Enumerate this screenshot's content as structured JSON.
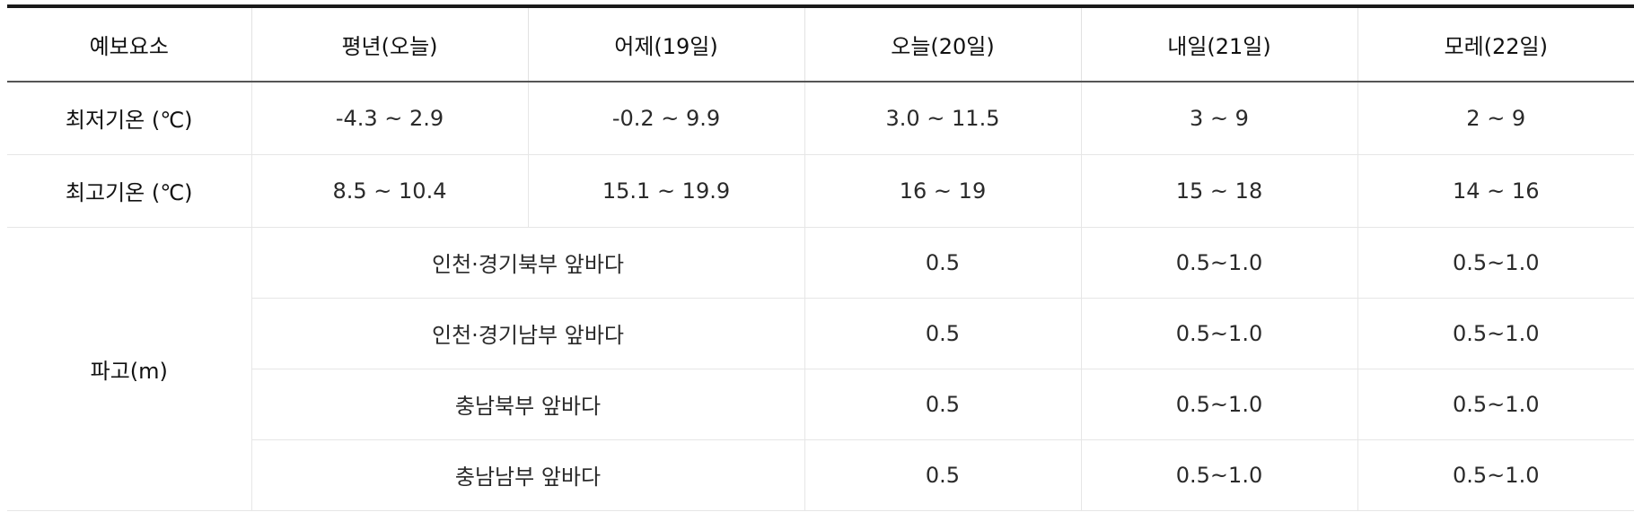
{
  "header": {
    "element": "예보요소",
    "normal": "평년(오늘)",
    "yesterday": "어제(19일)",
    "today": "오늘(20일)",
    "tomorrow": "내일(21일)",
    "dayafter": "모레(22일)"
  },
  "min_temp": {
    "label": "최저기온 (℃)",
    "normal": "-4.3 ~ 2.9",
    "yesterday": "-0.2 ~ 9.9",
    "today": "3.0 ~ 11.5",
    "tomorrow": "3 ~ 9",
    "dayafter": "2 ~ 9"
  },
  "max_temp": {
    "label": "최고기온 (℃)",
    "normal": "8.5 ~ 10.4",
    "yesterday": "15.1 ~ 19.9",
    "today": "16 ~ 19",
    "tomorrow": "15 ~ 18",
    "dayafter": "14 ~ 16"
  },
  "wave": {
    "label": "파고(m)",
    "regions": [
      {
        "name": "인천·경기북부 앞바다",
        "today": "0.5",
        "tomorrow": "0.5~1.0",
        "dayafter": "0.5~1.0"
      },
      {
        "name": "인천·경기남부 앞바다",
        "today": "0.5",
        "tomorrow": "0.5~1.0",
        "dayafter": "0.5~1.0"
      },
      {
        "name": "충남북부 앞바다",
        "today": "0.5",
        "tomorrow": "0.5~1.0",
        "dayafter": "0.5~1.0"
      },
      {
        "name": "충남남부 앞바다",
        "today": "0.5",
        "tomorrow": "0.5~1.0",
        "dayafter": "0.5~1.0"
      }
    ]
  }
}
